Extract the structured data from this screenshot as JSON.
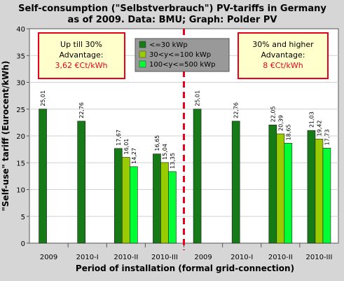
{
  "chart_data": {
    "type": "bar",
    "title_line1": "Self-consumption (\"Selbstverbrauch\") PV-tariffs in Germany",
    "title_line2": "as of 2009. Data: BMU; Graph: Polder PV",
    "ylabel": "\"Self-use\" tariff (Eurocent/kWh)",
    "xlabel": "Period of installation (formal grid-connection)",
    "ylim": [
      0,
      40
    ],
    "yticks": [
      "0",
      "5",
      "10",
      "15",
      "20",
      "25",
      "30",
      "35",
      "40"
    ],
    "grid": true,
    "legend_placement": "top-center",
    "categories": [
      "2009",
      "2010-I",
      "2010-II",
      "2010-III",
      "2009",
      "2010-I",
      "2010-II",
      "2010-III"
    ],
    "series": [
      {
        "name": "<=30 kWp",
        "color": "#167a16",
        "values": [
          25.01,
          22.76,
          17.67,
          16.65,
          25.01,
          22.76,
          22.05,
          21.03
        ],
        "labels": [
          "25,01",
          "22,76",
          "17,67",
          "16,65",
          "25,01",
          "22,76",
          "22,05",
          "21,03"
        ]
      },
      {
        "name": "30<y<=100 kWp",
        "color": "#99cc00",
        "values": [
          null,
          null,
          16.01,
          15.04,
          null,
          null,
          20.39,
          19.42
        ],
        "labels": [
          "",
          "",
          "16,01",
          "15,04",
          "",
          "",
          "20,39",
          "19,42"
        ]
      },
      {
        "name": "100<y<=500 kWp",
        "color": "#00ff33",
        "values": [
          null,
          null,
          14.27,
          13.35,
          null,
          null,
          18.65,
          17.73
        ],
        "labels": [
          "",
          "",
          "14,27",
          "13,35",
          "",
          "",
          "18,65",
          "17,73"
        ]
      }
    ],
    "annotations": {
      "left_box": {
        "line1": "Up till 30%",
        "line2": "Advantage:",
        "line3": "3,62 €Ct/kWh"
      },
      "right_box": {
        "line1": "30% and higher",
        "line2": "Advantage:",
        "line3": "8 €Ct/kWh"
      }
    },
    "colors": {
      "plot_background": "#ffffff",
      "background": "#d6d6d6",
      "note_fill": "#ffffcc",
      "note_border": "#e8001c",
      "divider": "#e8001c",
      "legend_fill": "#999999"
    }
  }
}
